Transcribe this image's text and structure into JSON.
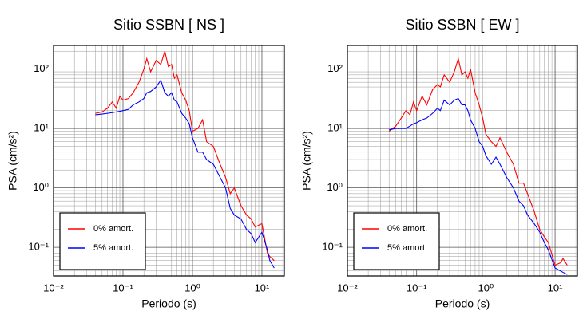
{
  "chart_data": [
    {
      "type": "line",
      "title": "Sitio SSBN [ NS ]",
      "x_label": "Periodo (s)",
      "y_label": "PSA (cm/s²)",
      "x_scale": "log",
      "y_scale": "log",
      "grid": true,
      "legend": "lower left",
      "xlim": [
        0.01,
        21
      ],
      "ylim": [
        0.033,
        250
      ],
      "xticks": [
        {
          "value": 0.01,
          "label": "10⁻²"
        },
        {
          "value": 0.1,
          "label": "10⁻¹"
        },
        {
          "value": 1,
          "label": "10⁰"
        },
        {
          "value": 10,
          "label": "10¹"
        }
      ],
      "yticks": [
        {
          "value": 0.1,
          "label": "10⁻¹"
        },
        {
          "value": 1,
          "label": "10⁰"
        },
        {
          "value": 10,
          "label": "10¹"
        },
        {
          "value": 100,
          "label": "10²"
        }
      ],
      "x": [
        0.04,
        0.05,
        0.06,
        0.07,
        0.08,
        0.09,
        0.1,
        0.12,
        0.14,
        0.17,
        0.2,
        0.22,
        0.25,
        0.3,
        0.35,
        0.4,
        0.45,
        0.5,
        0.55,
        0.6,
        0.7,
        0.8,
        0.9,
        1.0,
        1.2,
        1.4,
        1.6,
        2,
        2.5,
        3,
        3.5,
        4,
        5,
        6,
        7,
        8,
        10,
        12,
        13,
        15
      ],
      "series": [
        {
          "name": "0% amort.",
          "color": "#ff0000",
          "values": [
            18,
            19,
            22,
            28,
            22,
            35,
            30,
            32,
            40,
            60,
            100,
            150,
            90,
            140,
            120,
            200,
            110,
            120,
            70,
            80,
            40,
            30,
            20,
            9,
            10,
            14,
            6,
            5,
            2.5,
            1.5,
            0.8,
            1.0,
            0.5,
            0.35,
            0.3,
            0.22,
            0.25,
            0.08,
            0.07,
            0.06
          ]
        },
        {
          "name": "5% amort.",
          "color": "#0000ff",
          "values": [
            17,
            17.5,
            18,
            18.5,
            19,
            19.5,
            20,
            21,
            25,
            28,
            32,
            40,
            42,
            50,
            65,
            40,
            35,
            40,
            30,
            28,
            18,
            15,
            12,
            7,
            4,
            4,
            3,
            2.5,
            1.5,
            1.0,
            0.45,
            0.35,
            0.3,
            0.2,
            0.17,
            0.12,
            0.18,
            0.09,
            0.06,
            0.045
          ]
        }
      ]
    },
    {
      "type": "line",
      "title": "Sitio SSBN [ EW ]",
      "x_label": "Periodo (s)",
      "y_label": "PSA (cm/s²)",
      "x_scale": "log",
      "y_scale": "log",
      "grid": true,
      "legend": "lower left",
      "xlim": [
        0.01,
        21
      ],
      "ylim": [
        0.033,
        250
      ],
      "xticks": [
        {
          "value": 0.01,
          "label": "10⁻²"
        },
        {
          "value": 0.1,
          "label": "10⁻¹"
        },
        {
          "value": 1,
          "label": "10⁰"
        },
        {
          "value": 10,
          "label": "10¹"
        }
      ],
      "yticks": [
        {
          "value": 0.1,
          "label": "10⁻¹"
        },
        {
          "value": 1,
          "label": "10⁰"
        },
        {
          "value": 10,
          "label": "10¹"
        },
        {
          "value": 100,
          "label": "10²"
        }
      ],
      "x": [
        0.04,
        0.05,
        0.06,
        0.07,
        0.08,
        0.09,
        0.1,
        0.12,
        0.14,
        0.17,
        0.2,
        0.22,
        0.25,
        0.3,
        0.35,
        0.4,
        0.45,
        0.5,
        0.55,
        0.6,
        0.7,
        0.8,
        0.9,
        1.0,
        1.2,
        1.4,
        1.6,
        2,
        2.5,
        3,
        3.5,
        4,
        5,
        6,
        7,
        8,
        10,
        12,
        13,
        15
      ],
      "series": [
        {
          "name": "0% amort.",
          "color": "#ff0000",
          "values": [
            9,
            11,
            15,
            20,
            17,
            28,
            20,
            35,
            25,
            45,
            55,
            50,
            80,
            60,
            90,
            150,
            80,
            90,
            70,
            100,
            40,
            25,
            15,
            8,
            6,
            5,
            7,
            4,
            2.5,
            1.2,
            1.2,
            0.8,
            0.4,
            0.2,
            0.15,
            0.12,
            0.05,
            0.055,
            0.065,
            0.05
          ]
        },
        {
          "name": "5% amort.",
          "color": "#0000ff",
          "values": [
            9.5,
            10,
            10,
            10,
            11,
            12,
            12.5,
            14,
            15,
            18,
            22,
            20,
            30,
            25,
            30,
            32,
            25,
            25,
            20,
            14,
            10,
            6,
            5,
            3.5,
            2.5,
            3.3,
            2.5,
            1.5,
            1.0,
            0.6,
            0.5,
            0.35,
            0.25,
            0.18,
            0.12,
            0.09,
            0.045,
            0.04,
            0.038,
            0.035
          ]
        }
      ]
    }
  ]
}
